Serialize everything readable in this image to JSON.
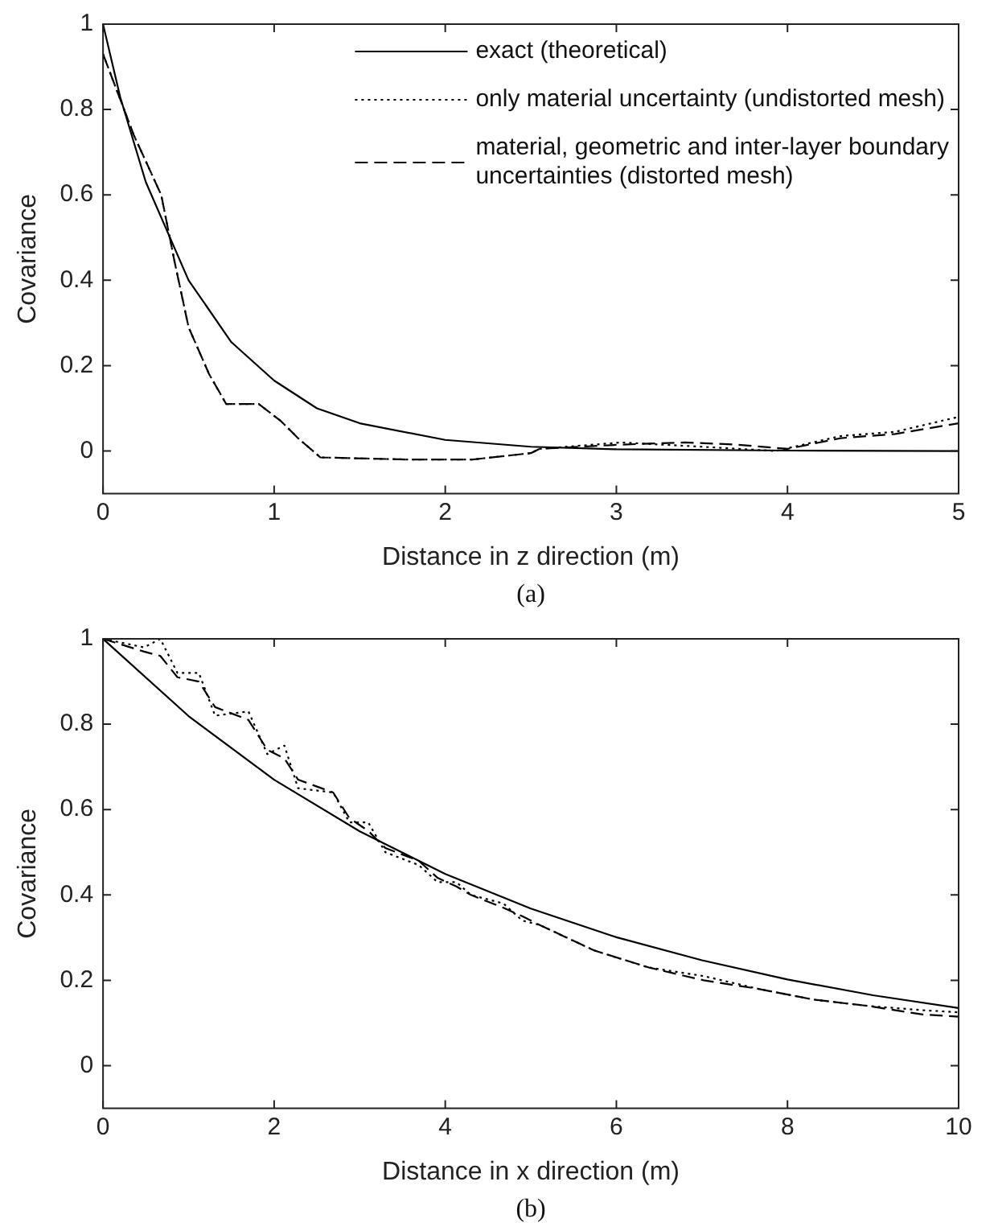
{
  "chart_data": [
    {
      "type": "line",
      "xlabel": "Distance in z direction (m)",
      "ylabel": "Covariance",
      "annotations": [
        "(a)"
      ],
      "xlim": [
        0,
        5
      ],
      "xticks": [
        0,
        1,
        2,
        3,
        4,
        5
      ],
      "ylim": [
        -0.1,
        1
      ],
      "yticks": [
        0,
        0.2,
        0.4,
        0.6,
        0.8,
        1
      ],
      "grid": false,
      "legend": "top right",
      "marker": "none",
      "series": [
        {
          "name": "exact (theoretical)",
          "color": "#000000",
          "line_style": "solid",
          "x": [
            0,
            0.1,
            0.25,
            0.5,
            0.75,
            1,
            1.25,
            1.5,
            2,
            2.5,
            3,
            4,
            5
          ],
          "values": [
            1,
            0.83,
            0.63,
            0.4,
            0.255,
            0.165,
            0.1,
            0.065,
            0.026,
            0.01,
            0.004,
            0.001,
            0
          ]
        },
        {
          "name": "only material uncertainty (undistorted mesh)",
          "color": "#000000",
          "line_style": "dotted",
          "x": [
            0,
            0.18,
            0.34,
            0.42,
            0.5,
            0.62,
            0.72,
            0.91,
            1.04,
            1.14,
            1.27,
            1.78,
            2.16,
            2.5,
            2.55,
            3.03,
            3.5,
            3.93,
            4.31,
            4.63,
            5
          ],
          "values": [
            0.93,
            0.74,
            0.6,
            0.44,
            0.29,
            0.18,
            0.11,
            0.11,
            0.07,
            0.03,
            -0.015,
            -0.02,
            -0.02,
            -0.005,
            0.005,
            0.02,
            0.01,
            0,
            0.035,
            0.045,
            0.08
          ]
        },
        {
          "name": "material, geometric and inter-layer boundary uncertainties (distorted mesh)",
          "color": "#000000",
          "line_style": "dashed",
          "x": [
            0,
            0.18,
            0.34,
            0.42,
            0.5,
            0.62,
            0.72,
            0.91,
            1.04,
            1.14,
            1.27,
            1.78,
            2.16,
            2.5,
            2.55,
            3.03,
            3.4,
            3.7,
            4,
            4.31,
            4.63,
            5
          ],
          "values": [
            0.93,
            0.74,
            0.6,
            0.44,
            0.29,
            0.18,
            0.11,
            0.11,
            0.07,
            0.03,
            -0.015,
            -0.02,
            -0.02,
            -0.005,
            0.005,
            0.015,
            0.02,
            0.015,
            0.005,
            0.03,
            0.04,
            0.065
          ]
        }
      ]
    },
    {
      "type": "line",
      "xlabel": "Distance in x direction (m)",
      "ylabel": "Covariance",
      "annotations": [
        "(b)"
      ],
      "xlim": [
        0,
        10
      ],
      "xticks": [
        0,
        2,
        4,
        6,
        8,
        10
      ],
      "ylim": [
        -0.1,
        1
      ],
      "yticks": [
        0,
        0.2,
        0.4,
        0.6,
        0.8,
        1
      ],
      "grid": false,
      "marker": "none",
      "series": [
        {
          "color": "#000000",
          "line_style": "solid",
          "x": [
            0,
            1,
            2,
            3,
            4,
            5,
            6,
            7,
            8,
            9,
            10
          ],
          "values": [
            1,
            0.819,
            0.67,
            0.549,
            0.449,
            0.368,
            0.301,
            0.247,
            0.202,
            0.165,
            0.135
          ]
        },
        {
          "color": "#000000",
          "line_style": "dotted",
          "x": [
            0,
            0.48,
            0.67,
            0.87,
            1.12,
            1.31,
            1.7,
            1.92,
            2.12,
            2.28,
            2.69,
            2.88,
            3.1,
            3.3,
            3.69,
            3.91,
            4.13,
            4.3,
            4.68,
            4.9,
            5.1,
            5.74,
            6.38,
            7.02,
            7.66,
            8.3,
            8.94,
            9.58,
            10
          ],
          "values": [
            1,
            0.98,
            1,
            0.92,
            0.92,
            0.82,
            0.83,
            0.73,
            0.75,
            0.65,
            0.64,
            0.57,
            0.57,
            0.5,
            0.47,
            0.43,
            0.43,
            0.4,
            0.38,
            0.34,
            0.33,
            0.27,
            0.23,
            0.21,
            0.18,
            0.155,
            0.14,
            0.13,
            0.125
          ]
        },
        {
          "color": "#000000",
          "line_style": "dashed",
          "x": [
            0,
            0.48,
            0.67,
            0.87,
            1.12,
            1.31,
            1.7,
            1.92,
            2.12,
            2.28,
            2.69,
            2.88,
            3.1,
            3.3,
            3.69,
            3.91,
            4.13,
            4.3,
            4.68,
            4.9,
            5.1,
            5.74,
            6.38,
            7.02,
            7.66,
            8.3,
            8.94,
            9.58,
            10
          ],
          "values": [
            1,
            0.97,
            0.96,
            0.91,
            0.9,
            0.84,
            0.81,
            0.74,
            0.72,
            0.67,
            0.64,
            0.58,
            0.55,
            0.51,
            0.48,
            0.44,
            0.42,
            0.4,
            0.37,
            0.35,
            0.33,
            0.27,
            0.23,
            0.2,
            0.18,
            0.155,
            0.14,
            0.12,
            0.115
          ]
        }
      ]
    }
  ]
}
